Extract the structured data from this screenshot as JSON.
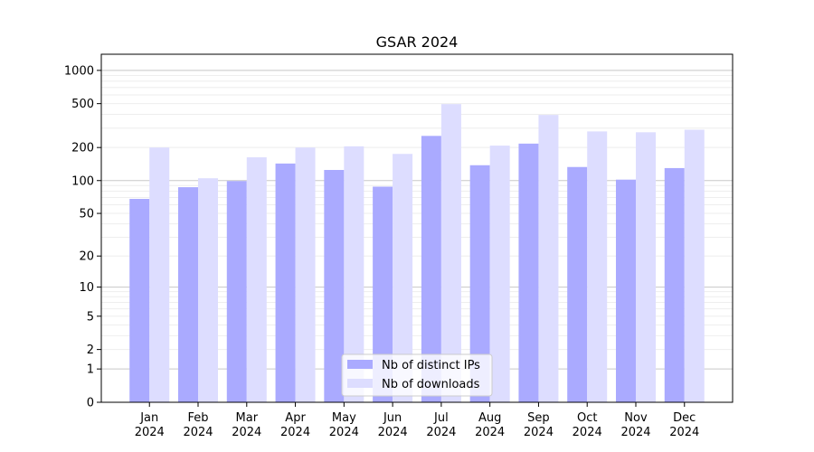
{
  "chart_data": {
    "type": "bar",
    "title": "GSAR 2024",
    "xlabel": "",
    "ylabel": "",
    "y_scale": "log(1+y)",
    "ylim": [
      0,
      1400
    ],
    "y_ticks": [
      0,
      1,
      2,
      5,
      10,
      20,
      50,
      100,
      200,
      500,
      1000
    ],
    "categories": [
      [
        "Jan",
        "2024"
      ],
      [
        "Feb",
        "2024"
      ],
      [
        "Mar",
        "2024"
      ],
      [
        "Apr",
        "2024"
      ],
      [
        "May",
        "2024"
      ],
      [
        "Jun",
        "2024"
      ],
      [
        "Jul",
        "2024"
      ],
      [
        "Aug",
        "2024"
      ],
      [
        "Sep",
        "2024"
      ],
      [
        "Oct",
        "2024"
      ],
      [
        "Nov",
        "2024"
      ],
      [
        "Dec",
        "2024"
      ]
    ],
    "series": [
      {
        "name": "Nb of distinct IPs",
        "color": "#aaaaff",
        "values": [
          68,
          87,
          99,
          143,
          125,
          88,
          255,
          138,
          217,
          133,
          102,
          130
        ]
      },
      {
        "name": "Nb of downloads",
        "color": "#ddddff",
        "values": [
          200,
          105,
          163,
          200,
          205,
          175,
          495,
          208,
          395,
          280,
          275,
          290
        ]
      }
    ],
    "grid": true,
    "legend_position": "bottom-center"
  }
}
